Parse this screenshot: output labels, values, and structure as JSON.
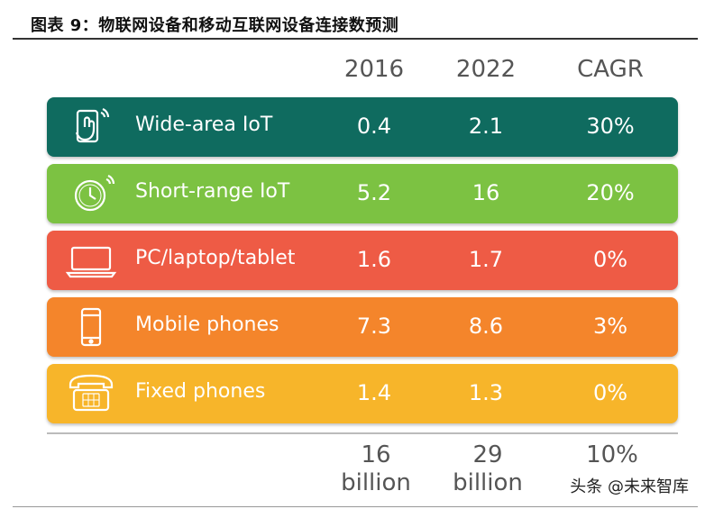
{
  "title": "图表 9：物联网设备和移动互联网设备连接数预测",
  "chart_data": {
    "type": "table",
    "columns": [
      "2016",
      "2022",
      "CAGR"
    ],
    "rows": [
      {
        "label": "Wide-area IoT",
        "icon": "touch-phone-icon",
        "color": "#0f6b5f",
        "v2016": "0.4",
        "v2022": "2.1",
        "cagr": "30%"
      },
      {
        "label": "Short-range IoT",
        "icon": "watch-icon",
        "color": "#7cc242",
        "v2016": "5.2",
        "v2022": "16",
        "cagr": "20%"
      },
      {
        "label": "PC/laptop/tablet",
        "icon": "laptop-icon",
        "color": "#ee5b45",
        "v2016": "1.6",
        "v2022": "1.7",
        "cagr": "0%"
      },
      {
        "label": "Mobile phones",
        "icon": "mobile-phone-icon",
        "color": "#f4852b",
        "v2016": "7.3",
        "v2022": "8.6",
        "cagr": "3%"
      },
      {
        "label": "Fixed phones",
        "icon": "fixed-phone-icon",
        "color": "#f7b52a",
        "v2016": "1.4",
        "v2022": "1.3",
        "cagr": "0%"
      }
    ],
    "totals": {
      "v2016": "16",
      "v2016_unit": "billion",
      "v2022": "29",
      "v2022_unit": "billion",
      "cagr": "10%"
    }
  },
  "watermark": "头条 @未来智库"
}
